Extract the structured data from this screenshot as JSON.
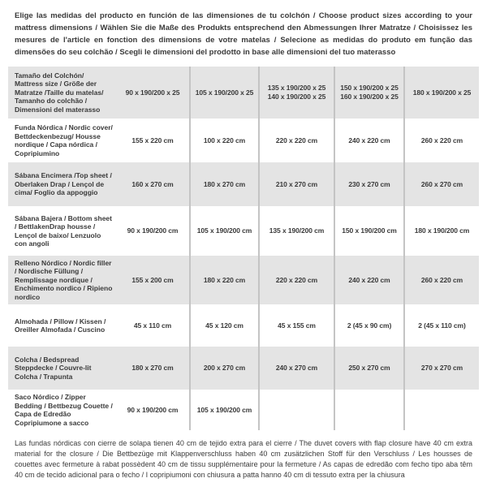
{
  "intro": "Elige las medidas del producto en función de las dimensiones de tu colchón / Choose product sizes according to your mattress dimensions / Wählen Sie die Maße des Produkts entsprechend den Abmessungen Ihrer Matratze / Choisissez les mesures de l'article en fonction des dimensions de votre matelas / Selecione as medidas do produto em função das dimensões do seu colchão / Scegli le dimensioni del prodotto in base alle dimensioni del tuo materasso",
  "footnote": "Las fundas nórdicas con cierre de solapa tienen 40 cm de tejido extra para el cierre  / The duvet covers with flap closure have 40 cm extra material for the closure / Die Bettbezüge mit Klappenverschluss haben 40 cm zusätzlichen Stoff für den Verschluss / Les housses de couettes avec fermeture à rabat possèdent 40 cm de tissu supplémentaire pour la fermeture / As capas de edredão com fecho tipo aba têm 40 cm de tecido adicional para o fecho / I copripiumoni con chiusura a patta hanno 40 cm di tessuto extra per la chiusura",
  "colors": {
    "row_gray": "#e4e4e4",
    "row_white": "#ffffff",
    "divider": "#c4c4c4",
    "text": "#3a3a3a"
  },
  "table": {
    "rows": [
      {
        "label": "Tamaño del Colchón/ Mattress size / Größe der Matratze /Taille du matelas/ Tamanho do colchão / Dimensioni del materasso",
        "values": [
          "90 x 190/200 x 25",
          "105 x 190/200 x 25",
          "135 x 190/200 x 25\n140 x 190/200 x 25",
          "150 x 190/200 x 25\n160 x 190/200 x 25",
          "180 x 190/200 x 25"
        ]
      },
      {
        "label": "Funda Nórdica /  Nordic cover/ Bettdeckenbezug/ Housse nordique  / Capa nórdica / Copripiumino",
        "values": [
          "155 x 220 cm",
          "100 x 220 cm",
          "220 x 220 cm",
          "240 x 220 cm",
          "260 x 220 cm"
        ]
      },
      {
        "label": "Sábana Encimera /Top sheet / Oberlaken Drap / Lençol de cima/ Foglio da appoggio",
        "values": [
          "160 x 270 cm",
          "180 x 270 cm",
          "210 x 270 cm",
          "230 x 270 cm",
          "260 x 270 cm"
        ]
      },
      {
        "label": "Sábana Bajera / Bottom sheet / BettlakenDrap housse / Lençol de baixo/ Lenzuolo con angoli",
        "values": [
          "90 x 190/200 cm",
          "105 x 190/200 cm",
          "135 x 190/200 cm",
          "150 x 190/200 cm",
          "180 x 190/200 cm"
        ]
      },
      {
        "label": "Relleno Nórdico / Nordic filler / Nordische Füllung / Remplissage nordique / Enchimento nordico / Ripieno nordico",
        "values": [
          "155 x 200 cm",
          "180 x 220 cm",
          "220 x 220 cm",
          "240 x 220 cm",
          "260 x 220 cm"
        ]
      },
      {
        "label": "Almohada  / Pillow / Kissen / Oreiller Almofada / Cuscino",
        "values": [
          "45 x 110 cm",
          "45 x 120 cm",
          "45 x 155 cm",
          "2 (45 x 90 cm)",
          "2 (45 x 110 cm)"
        ]
      },
      {
        "label": "Colcha / Bedspread Steppdecke / Couvre-lit Colcha / Trapunta",
        "values": [
          "180 x 270 cm",
          "200 x 270 cm",
          "240 x 270 cm",
          "250 x 270 cm",
          "270 x 270 cm"
        ]
      },
      {
        "label": "Saco Nórdico / Zipper Bedding / Bettbezug Couette  / Capa de Edredão Copripiumone a sacco",
        "values": [
          "90 x 190/200 cm",
          "105 x 190/200 cm",
          "",
          "",
          ""
        ]
      }
    ]
  }
}
